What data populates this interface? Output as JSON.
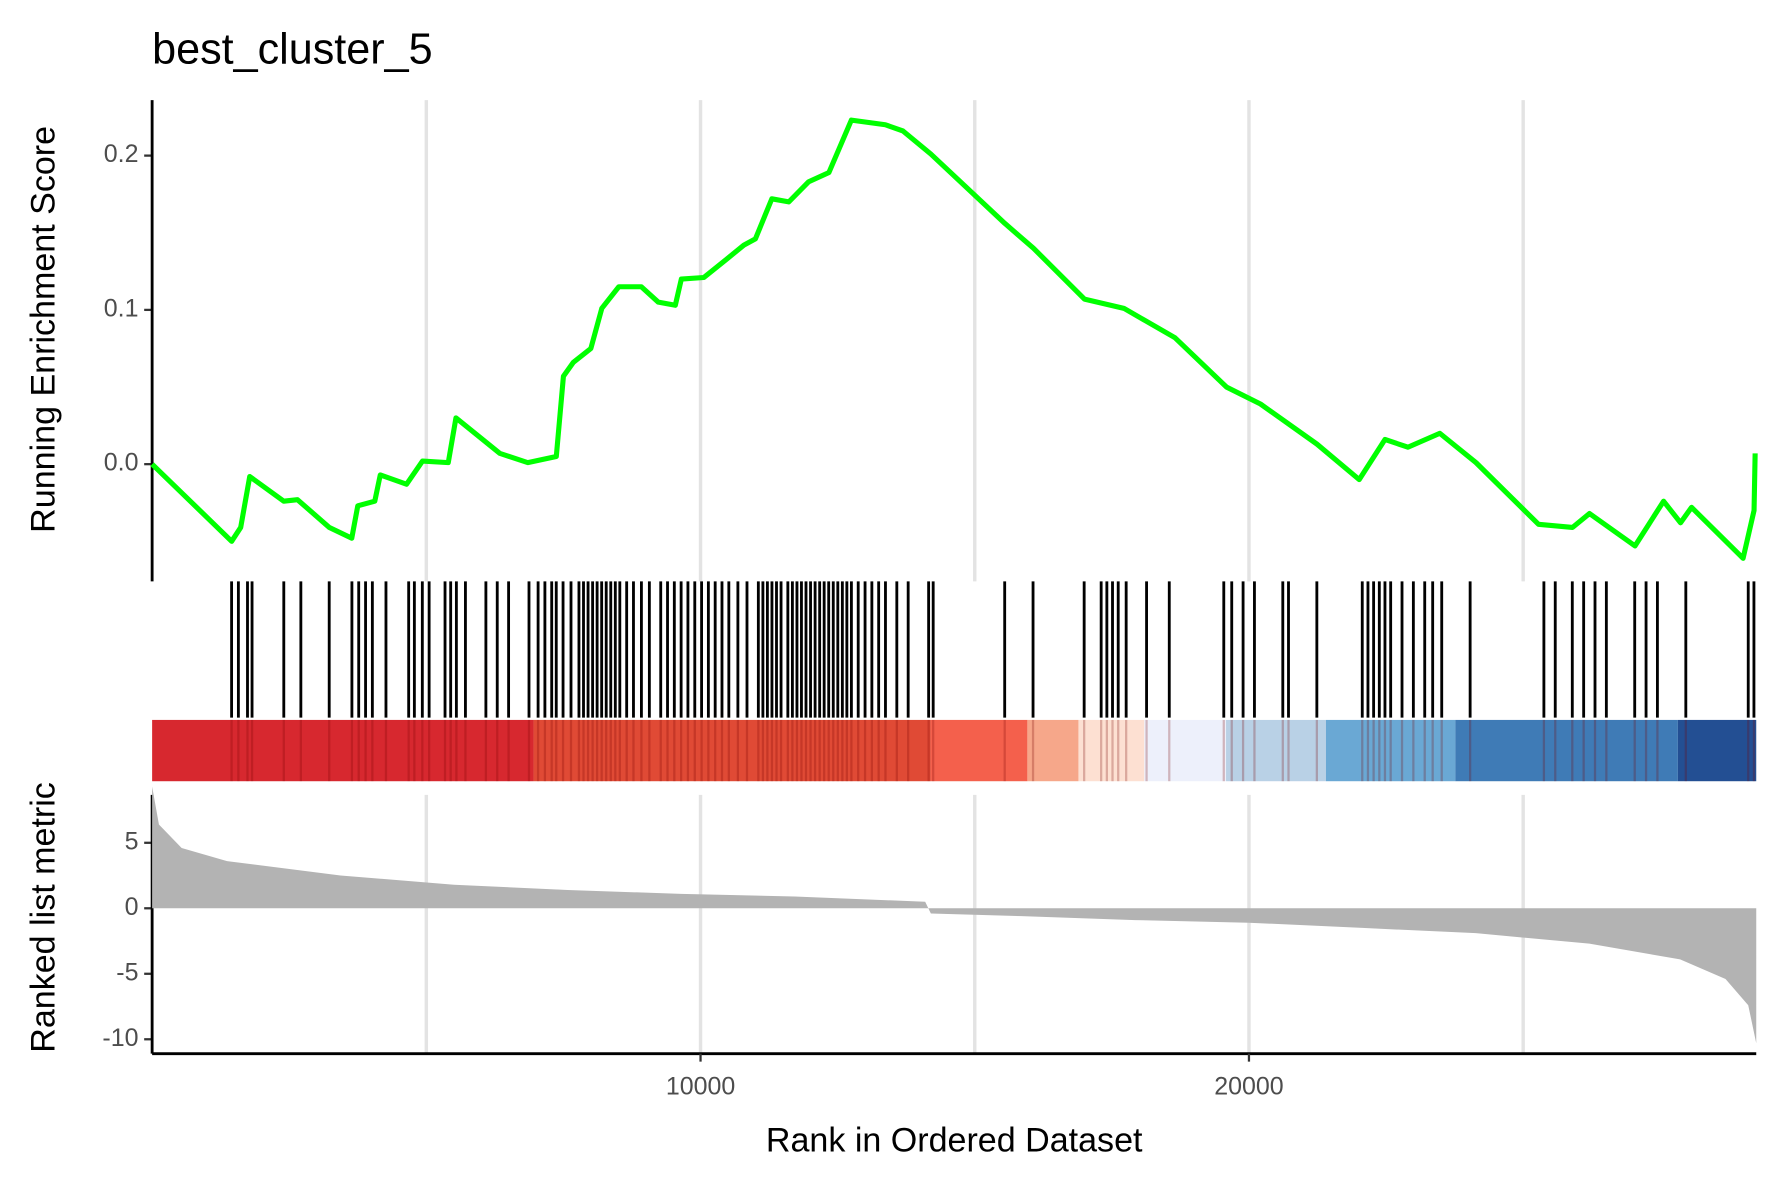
{
  "chart_data": [
    {
      "type": "line",
      "title": "best_cluster_5",
      "y_label": "Running Enrichment Score",
      "color": "#00ff00",
      "x": [
        0,
        1450,
        1615,
        1780,
        2400,
        2650,
        3230,
        3640,
        3750,
        4060,
        4160,
        4640,
        4930,
        5400,
        5540,
        6340,
        6850,
        7370,
        7500,
        7680,
        8000,
        8200,
        8510,
        8920,
        9230,
        9540,
        9650,
        10060,
        10480,
        10790,
        11000,
        11300,
        11610,
        11970,
        12340,
        12750,
        13370,
        13690,
        14200,
        15550,
        16070,
        17000,
        17720,
        18650,
        19590,
        20210,
        21240,
        22010,
        22480,
        22900,
        23480,
        24140,
        25280,
        25900,
        26210,
        27040,
        27560,
        27870,
        28070,
        29010,
        29210,
        29230
      ],
      "values": [
        0,
        -0.05,
        -0.041,
        -0.008,
        -0.024,
        -0.023,
        -0.041,
        -0.048,
        -0.027,
        -0.024,
        -0.007,
        -0.013,
        0.002,
        0.001,
        0.03,
        0.007,
        0.001,
        0.005,
        0.057,
        0.066,
        0.075,
        0.101,
        0.115,
        0.115,
        0.105,
        0.103,
        0.12,
        0.121,
        0.133,
        0.142,
        0.146,
        0.172,
        0.17,
        0.183,
        0.189,
        0.223,
        0.22,
        0.216,
        0.201,
        0.156,
        0.14,
        0.107,
        0.101,
        0.082,
        0.05,
        0.039,
        0.013,
        -0.01,
        0.016,
        0.011,
        0.02,
        0.001,
        -0.039,
        -0.041,
        -0.032,
        -0.053,
        -0.024,
        -0.038,
        -0.028,
        -0.061,
        -0.03,
        0.007
      ],
      "xlim": [
        0,
        29250
      ],
      "ylim": [
        -0.076,
        0.236
      ],
      "yticks": [
        {
          "value": 0,
          "label": "0.0"
        },
        0.1,
        0.2
      ],
      "x_gridlines": [
        5000,
        10000,
        15000,
        20000,
        25000
      ]
    },
    {
      "type": "rug",
      "color": "#000000",
      "x": [
        1449,
        1573,
        1739,
        1822,
        2401,
        2712,
        3229,
        3643,
        3767,
        3892,
        4016,
        4264,
        4678,
        4782,
        4927,
        5051,
        5341,
        5444,
        5548,
        5713,
        6086,
        6293,
        6500,
        6872,
        7038,
        7162,
        7286,
        7369,
        7493,
        7638,
        7783,
        7866,
        7949,
        8032,
        8114,
        8197,
        8280,
        8363,
        8446,
        8528,
        8653,
        8777,
        8922,
        9067,
        9274,
        9398,
        9522,
        9646,
        9770,
        9895,
        10019,
        10143,
        10267,
        10391,
        10516,
        10681,
        10847,
        11054,
        11137,
        11219,
        11302,
        11385,
        11468,
        11592,
        11675,
        11758,
        11840,
        11923,
        12006,
        12089,
        12172,
        12254,
        12337,
        12420,
        12503,
        12586,
        12668,
        12751,
        12875,
        13000,
        13124,
        13248,
        13372,
        13579,
        13786,
        14159,
        14242,
        15546,
        16063,
        16995,
        17305,
        17409,
        17512,
        17616,
        17761,
        18133,
        18547,
        19541,
        19686,
        19893,
        20100,
        20617,
        20721,
        21238,
        22066,
        22170,
        22273,
        22377,
        22480,
        22584,
        22791,
        22998,
        23205,
        23350,
        23515,
        24033,
        25378,
        25585,
        25896,
        26103,
        26310,
        26517,
        27034,
        27241,
        27448,
        27966,
        29104,
        29208
      ],
      "bins": [
        0,
        6955,
        14200,
        15960,
        16891,
        18092,
        19582,
        21404,
        23764,
        27821,
        29250
      ],
      "colors": [
        "#d7282f",
        "#e04a35",
        "#f4604c",
        "#f6a78a",
        "#fde0d2",
        "#edf0fb",
        "#b9d1e6",
        "#6aa8d4",
        "#3f7bb6",
        "#234f93"
      ]
    },
    {
      "type": "area",
      "y_label": "Ranked list metric",
      "x_label": "Rank in Ordered Dataset",
      "color": "#b3b3b3",
      "x": [
        0,
        124,
        538,
        1366,
        3436,
        5506,
        7576,
        9646,
        11716,
        14096,
        14200,
        15856,
        17926,
        19996,
        22066,
        24136,
        26206,
        27862,
        28690,
        29104,
        29250
      ],
      "values": [
        9.3,
        6.4,
        4.6,
        3.6,
        2.5,
        1.8,
        1.4,
        1.1,
        0.9,
        0.5,
        -0.4,
        -0.6,
        -0.9,
        -1.1,
        -1.5,
        -1.9,
        -2.7,
        -3.9,
        -5.4,
        -7.4,
        -10.3
      ],
      "xlim": [
        0,
        29250
      ],
      "ylim": [
        -11.1,
        9.7
      ],
      "xticks": [
        10000,
        20000
      ],
      "yticks": [
        -10,
        -5,
        0,
        5
      ]
    }
  ]
}
